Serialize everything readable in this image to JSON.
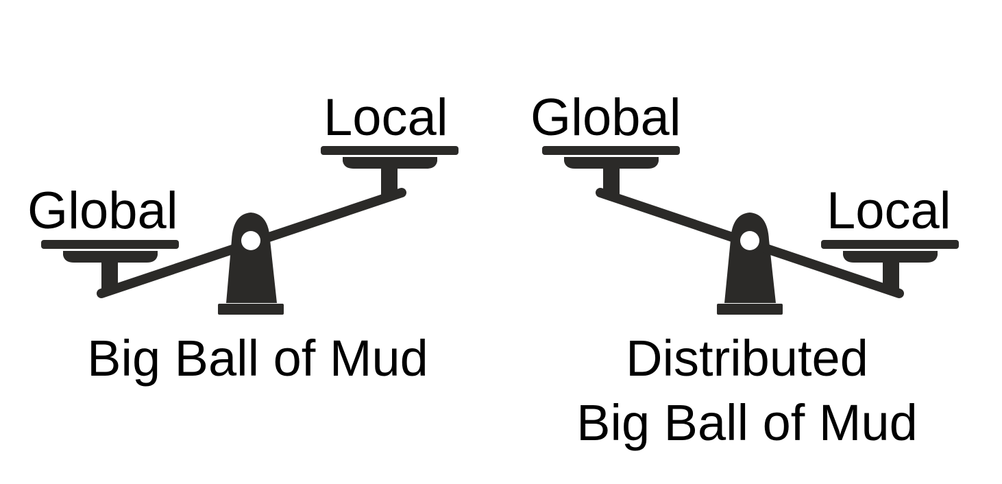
{
  "scales": [
    {
      "caption_lines": [
        "Big Ball of Mud"
      ],
      "pan_labels": {
        "left": "Global",
        "right": "Local"
      },
      "heavier_side": "left"
    },
    {
      "caption_lines": [
        "Distributed",
        "Big Ball of Mud"
      ],
      "pan_labels": {
        "left": "Global",
        "right": "Local"
      },
      "heavier_side": "right"
    }
  ],
  "colors": {
    "ink": "#2b2a28",
    "text": "#000000",
    "background": "#ffffff"
  },
  "icons": [
    "balance-scale-icon",
    "balance-scale-icon"
  ]
}
